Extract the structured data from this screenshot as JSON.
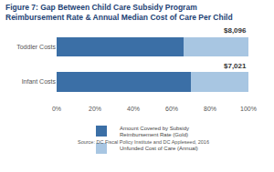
{
  "chart_data": {
    "type": "bar",
    "title": "Figure 7: Gap Between Child Care Subsidy Program\nReimbursement Rate & Annual Median Cost of Care Per Child",
    "orientation": "horizontal",
    "stacked": true,
    "categories": [
      "Toddler Costs",
      "Infant Costs"
    ],
    "series": [
      {
        "name": "Amount Covered by Subsidy Reimbursement Rate (Gold)",
        "color": "#3b6fa6",
        "values": [
          66,
          70
        ]
      },
      {
        "name": "Unfunded Cost of Care (Annual)",
        "color": "#a8c6e2",
        "values": [
          34,
          30
        ]
      }
    ],
    "annual_cost": [
      8096,
      7021
    ],
    "annual_cost_labels": [
      "$8,096",
      "$7,021"
    ],
    "xlim": [
      0,
      100
    ],
    "xticks": [
      {
        "value": 0,
        "label": "0%"
      },
      {
        "value": 20,
        "label": "20%"
      },
      {
        "value": 40,
        "label": "40%"
      },
      {
        "value": 60,
        "label": "60%"
      },
      {
        "value": 80,
        "label": "80%"
      },
      {
        "value": 100,
        "label": "100%"
      }
    ],
    "grid": false,
    "legend": "bottom",
    "source": "Source: DC Fiscal Policy Institute and DC Appleseed, 2016"
  }
}
